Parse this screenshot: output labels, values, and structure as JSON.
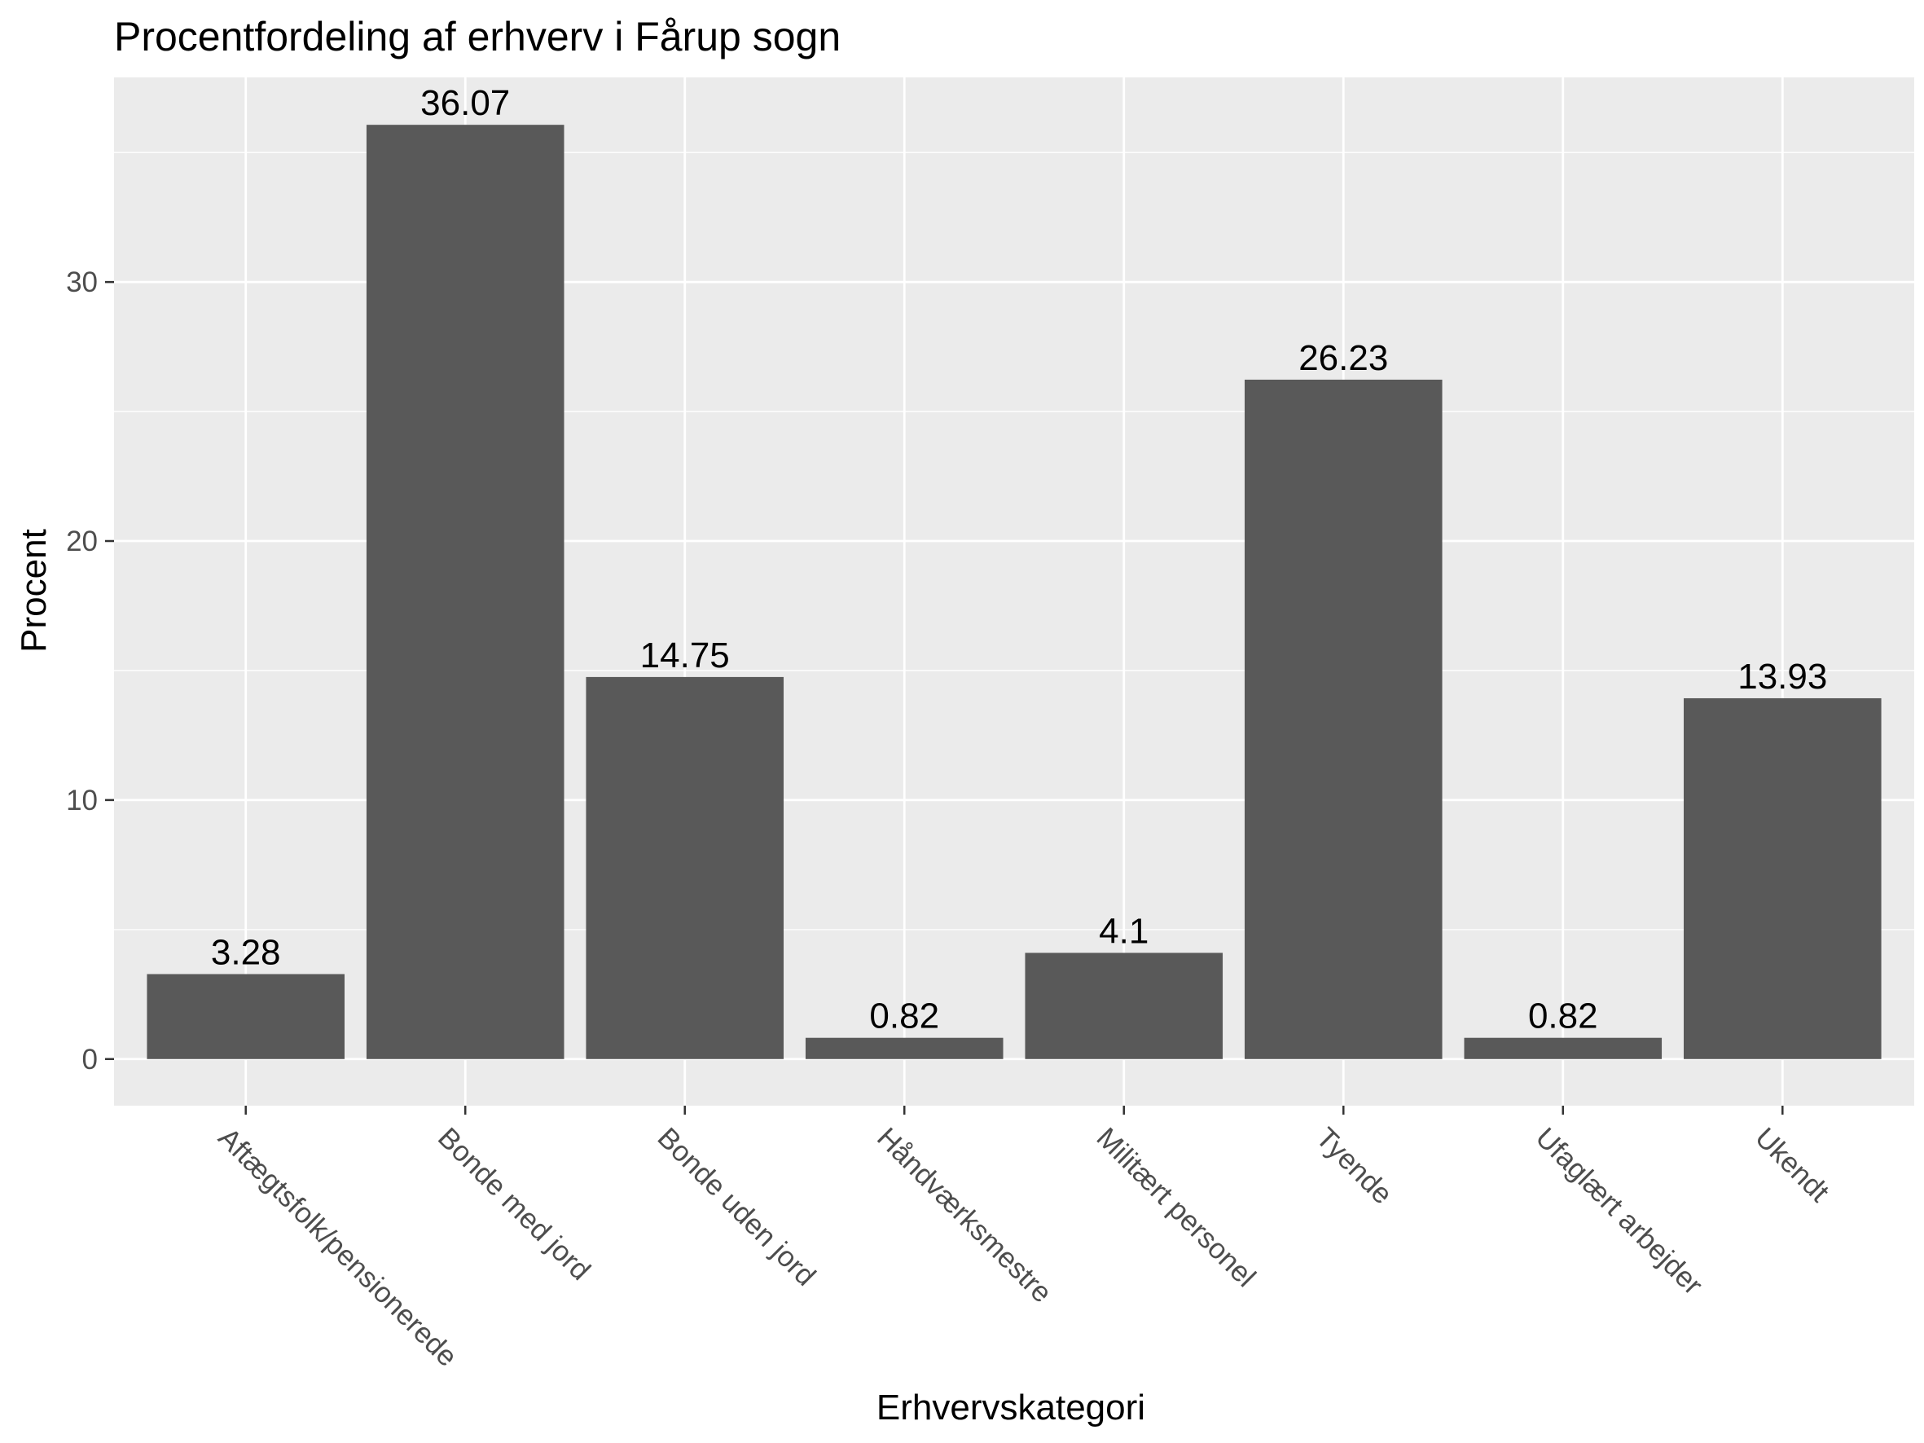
{
  "chart_data": {
    "type": "bar",
    "title": "Procentfordeling af erhverv i Fårup sogn",
    "xlabel": "Erhvervskategori",
    "ylabel": "Procent",
    "categories": [
      "Aftægtsfolk/pensionerede",
      "Bonde med jord",
      "Bonde uden jord",
      "Håndværksmestre",
      "Militært personel",
      "Tyende",
      "Ufaglært arbejder",
      "Ukendt"
    ],
    "values": [
      3.28,
      36.07,
      14.75,
      0.82,
      4.1,
      26.23,
      0.82,
      13.93
    ],
    "data_labels": [
      "3.28",
      "36.07",
      "14.75",
      "0.82",
      "4.1",
      "26.23",
      "0.82",
      "13.93"
    ],
    "yticks": [
      0,
      10,
      20,
      30
    ],
    "ylim": [
      -1.8,
      37.9
    ],
    "grid": true,
    "legend": "none",
    "colors": {
      "bar": "#595959",
      "panel": "#ebebeb",
      "grid": "#ffffff",
      "tick_text": "#4d4d4d",
      "text": "#000000"
    }
  }
}
